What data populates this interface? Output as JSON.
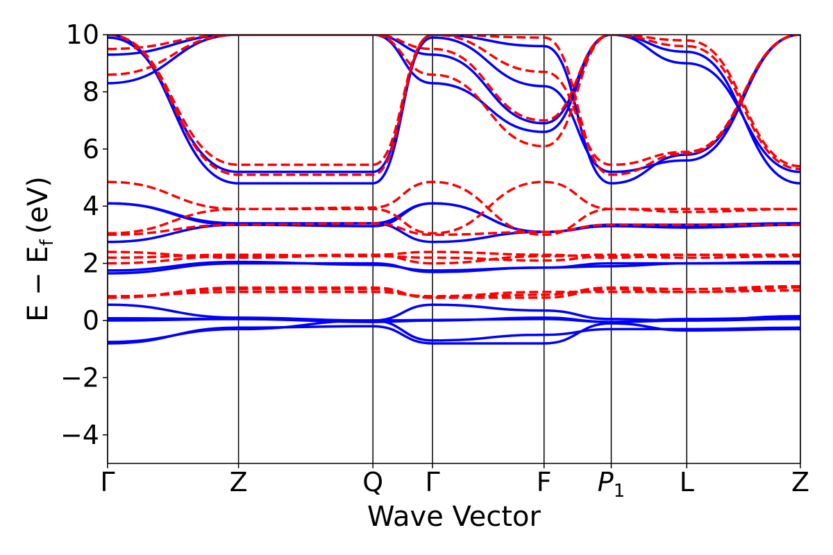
{
  "chart_data": {
    "type": "line",
    "xlabel": "Wave Vector",
    "ylabel": "E − E",
    "ylabel_sub": "f",
    "ylabel_unit": "(eV)",
    "ylim": [
      -5,
      10
    ],
    "yticks": [
      -4,
      -2,
      0,
      2,
      4,
      6,
      8,
      10
    ],
    "ytick_labels": [
      "−4",
      "−2",
      "0",
      "2",
      "4",
      "6",
      "8",
      "10"
    ],
    "xlim": [
      0,
      1
    ],
    "kpoints": [
      {
        "pos": 0.0,
        "label": "Γ",
        "italic": false
      },
      {
        "pos": 0.189,
        "label": "Z",
        "italic": false
      },
      {
        "pos": 0.383,
        "label": "Q",
        "italic": false
      },
      {
        "pos": 0.469,
        "label": "Γ",
        "italic": false
      },
      {
        "pos": 0.63,
        "label": "F",
        "italic": false
      },
      {
        "pos": 0.727,
        "label": "P",
        "sub": "1",
        "italic": true
      },
      {
        "pos": 0.836,
        "label": "L",
        "italic": false
      },
      {
        "pos": 1.0,
        "label": "Z",
        "italic": false
      }
    ],
    "series": [
      {
        "style": "solid",
        "color": "#0000ff",
        "bands": [
          [
            0.08,
            0.05,
            0.0,
            0.02,
            0.05,
            -0.05,
            0.0,
            0.05
          ],
          [
            -0.75,
            -0.3,
            0.0,
            -0.7,
            -0.5,
            -0.3,
            -0.3,
            -0.25
          ],
          [
            -0.8,
            -0.25,
            -0.2,
            -0.8,
            -0.8,
            -0.1,
            -0.35,
            -0.3
          ],
          [
            0.55,
            0.1,
            0.0,
            0.55,
            0.35,
            0.05,
            0.0,
            0.15
          ],
          [
            0.0,
            0.05,
            -0.05,
            0.0,
            0.1,
            -0.05,
            0.05,
            0.1
          ],
          [
            1.65,
            2.0,
            2.0,
            1.7,
            1.85,
            2.0,
            2.0,
            2.0
          ],
          [
            1.75,
            2.05,
            1.95,
            1.75,
            1.85,
            1.9,
            2.0,
            2.05
          ],
          [
            4.1,
            3.35,
            3.3,
            4.1,
            3.1,
            3.35,
            3.3,
            3.4
          ],
          [
            2.75,
            3.35,
            3.4,
            2.75,
            3.1,
            3.35,
            3.35,
            3.4
          ],
          [
            4.1,
            3.4,
            3.4,
            4.1,
            3.1,
            3.3,
            3.25,
            3.35
          ],
          [
            8.3,
            10.0,
            10.0,
            8.3,
            6.6,
            10.0,
            9.0,
            5.2
          ],
          [
            9.3,
            10.0,
            10.0,
            9.3,
            6.9,
            10.0,
            9.4,
            4.8
          ],
          [
            9.9,
            5.2,
            5.2,
            9.9,
            8.2,
            5.2,
            5.6,
            10.0
          ],
          [
            10.0,
            4.8,
            4.8,
            10.0,
            9.6,
            4.8,
            5.8,
            10.0
          ]
        ]
      },
      {
        "style": "dashed",
        "color": "#ff0000",
        "bands": [
          [
            0.8,
            1.15,
            1.15,
            0.8,
            0.9,
            1.15,
            1.1,
            1.2
          ],
          [
            0.85,
            1.0,
            1.0,
            0.85,
            1.0,
            1.0,
            1.0,
            1.05
          ],
          [
            0.8,
            1.1,
            1.1,
            0.8,
            0.8,
            1.1,
            1.0,
            1.15
          ],
          [
            2.0,
            2.25,
            2.3,
            2.0,
            2.25,
            2.3,
            2.3,
            2.3
          ],
          [
            2.2,
            2.3,
            2.25,
            2.2,
            2.1,
            2.25,
            2.2,
            2.25
          ],
          [
            2.4,
            2.2,
            2.3,
            2.4,
            2.3,
            2.2,
            2.3,
            2.25
          ],
          [
            4.85,
            3.9,
            3.95,
            4.85,
            3.0,
            3.9,
            3.9,
            3.9
          ],
          [
            3.0,
            3.35,
            3.4,
            3.0,
            3.1,
            3.35,
            3.35,
            3.35
          ],
          [
            3.05,
            3.9,
            3.9,
            3.05,
            4.85,
            3.9,
            3.8,
            3.9
          ],
          [
            8.6,
            10.0,
            10.0,
            8.6,
            6.1,
            10.0,
            9.8,
            5.4
          ],
          [
            9.5,
            10.0,
            10.0,
            9.5,
            7.0,
            10.0,
            9.6,
            5.3
          ],
          [
            10.0,
            5.45,
            5.45,
            10.0,
            8.7,
            5.45,
            5.9,
            10.0
          ],
          [
            10.0,
            5.1,
            5.1,
            10.0,
            9.9,
            5.1,
            5.85,
            10.0
          ]
        ]
      }
    ]
  }
}
